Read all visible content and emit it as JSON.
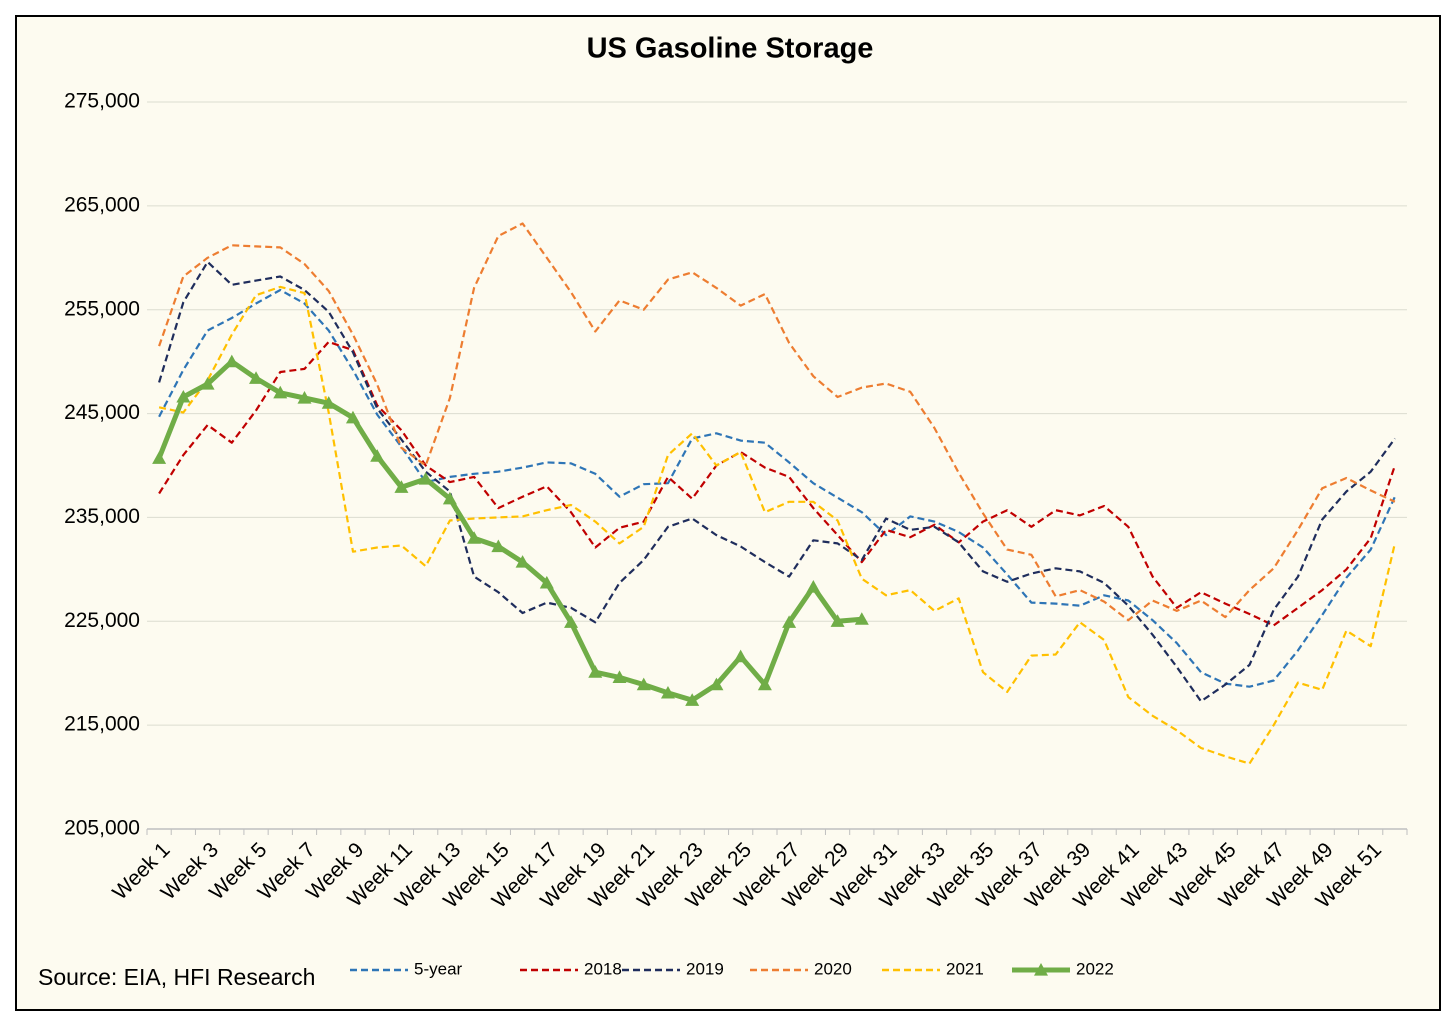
{
  "chart_data": {
    "type": "line",
    "title": "US Gasoline Storage",
    "source": "Source: EIA, HFI Research",
    "categories": [
      "Week 1",
      null,
      "Week 3",
      null,
      "Week 5",
      null,
      "Week 7",
      null,
      "Week 9",
      null,
      "Week 11",
      null,
      "Week 13",
      null,
      "Week 15",
      null,
      "Week 17",
      null,
      "Week 19",
      null,
      "Week 21",
      null,
      "Week 23",
      null,
      "Week 25",
      null,
      "Week 27",
      null,
      "Week 29",
      null,
      "Week 31",
      null,
      "Week 33",
      null,
      "Week 35",
      null,
      "Week 37",
      null,
      "Week 39",
      null,
      "Week 41",
      null,
      "Week 43",
      null,
      "Week 45",
      null,
      "Week 47",
      null,
      "Week 49",
      null,
      "Week 51",
      null
    ],
    "ylim": [
      205000,
      275000
    ],
    "yticks": [
      {
        "value": 205000,
        "label": "205,000"
      },
      {
        "value": 215000,
        "label": "215,000"
      },
      {
        "value": 225000,
        "label": "225,000"
      },
      {
        "value": 235000,
        "label": "235,000"
      },
      {
        "value": 245000,
        "label": "245,000"
      },
      {
        "value": 255000,
        "label": "255,000"
      },
      {
        "value": 265000,
        "label": "265,000"
      },
      {
        "value": 275000,
        "label": "275,000"
      }
    ],
    "grid": true,
    "legend": "bottom",
    "series": [
      {
        "name": "5-year",
        "color": "#2e75b6",
        "dashed": true,
        "values": [
          244700,
          249200,
          253000,
          254200,
          255600,
          256900,
          255600,
          253000,
          249200,
          244900,
          241800,
          238400,
          238900,
          239200,
          239400,
          239800,
          240300,
          240200,
          239200,
          237000,
          238200,
          238300,
          242600,
          243100,
          242400,
          242200,
          240300,
          238300,
          236900,
          235500,
          233300,
          235100,
          234600,
          233600,
          232100,
          229500,
          226800,
          226700,
          226500,
          227500,
          227000,
          225100,
          222900,
          220100,
          219000,
          218700,
          219300,
          222200,
          225600,
          229200,
          231900,
          237000
        ]
      },
      {
        "name": "2018",
        "color": "#c00000",
        "dashed": true,
        "values": [
          237300,
          241000,
          243900,
          242200,
          245300,
          249000,
          249300,
          251900,
          251100,
          245800,
          243400,
          240000,
          238400,
          238900,
          235900,
          237000,
          238000,
          235500,
          232100,
          234000,
          234600,
          238900,
          236800,
          240000,
          241300,
          239800,
          238900,
          235900,
          233300,
          230700,
          233800,
          233100,
          234300,
          232600,
          234600,
          235700,
          234100,
          235700,
          235200,
          236100,
          234100,
          229300,
          226300,
          227800,
          226700,
          225700,
          224600,
          226300,
          228000,
          230000,
          233000,
          240000
        ]
      },
      {
        "name": "2019",
        "color": "#1f2d5c",
        "dashed": true,
        "values": [
          248000,
          255700,
          259600,
          257400,
          257800,
          258200,
          256900,
          254800,
          250900,
          245500,
          242500,
          239400,
          237500,
          229300,
          227800,
          225800,
          226800,
          226300,
          224900,
          228700,
          230900,
          234100,
          234900,
          233300,
          232200,
          230700,
          229300,
          232800,
          232500,
          230900,
          234900,
          233800,
          234100,
          232600,
          229800,
          228800,
          229600,
          230100,
          229800,
          228700,
          226500,
          223700,
          220600,
          217300,
          218900,
          220800,
          226100,
          229300,
          234800,
          237500,
          239400,
          242600
        ]
      },
      {
        "name": "2020",
        "color": "#ed7d31",
        "dashed": true,
        "values": [
          251500,
          258200,
          260000,
          261200,
          261100,
          261000,
          259400,
          256800,
          252600,
          247800,
          241700,
          240000,
          246500,
          257100,
          262100,
          263300,
          260000,
          256700,
          252900,
          255900,
          255000,
          257900,
          258600,
          257100,
          255400,
          256500,
          251800,
          248600,
          246600,
          247500,
          247900,
          247100,
          243600,
          239300,
          235400,
          231900,
          231400,
          227400,
          228000,
          226900,
          225100,
          227000,
          226000,
          227000,
          225400,
          228000,
          230100,
          233800,
          237800,
          238800,
          237600,
          236500
        ]
      },
      {
        "name": "2021",
        "color": "#ffc000",
        "dashed": true,
        "values": [
          245600,
          245100,
          248200,
          252600,
          256400,
          257200,
          256600,
          245100,
          231700,
          232100,
          232300,
          230300,
          234700,
          234900,
          235000,
          235100,
          235700,
          236200,
          234600,
          232500,
          234100,
          241000,
          243100,
          240000,
          241300,
          235500,
          236500,
          236500,
          234700,
          229100,
          227500,
          228000,
          226000,
          227200,
          220100,
          218200,
          221700,
          221800,
          224900,
          223200,
          217700,
          215900,
          214500,
          212800,
          212000,
          211300,
          215000,
          219100,
          218400,
          224100,
          222600,
          232500
        ]
      },
      {
        "name": "2022",
        "color": "#70ad47",
        "dashed": false,
        "marker": "triangle",
        "values": [
          240700,
          246600,
          247850,
          250000,
          248400,
          247000,
          246500,
          246000,
          244600,
          240900,
          237900,
          238700,
          236800,
          233000,
          232200,
          230700,
          228700,
          224900,
          220100,
          219600,
          218900,
          218100,
          217400,
          218900,
          221600,
          218900,
          224900,
          228300,
          225000,
          225200,
          null,
          null,
          null,
          null,
          null,
          null,
          null,
          null,
          null,
          null,
          null,
          null,
          null,
          null,
          null,
          null,
          null,
          null,
          null,
          null,
          null,
          null
        ]
      }
    ]
  }
}
